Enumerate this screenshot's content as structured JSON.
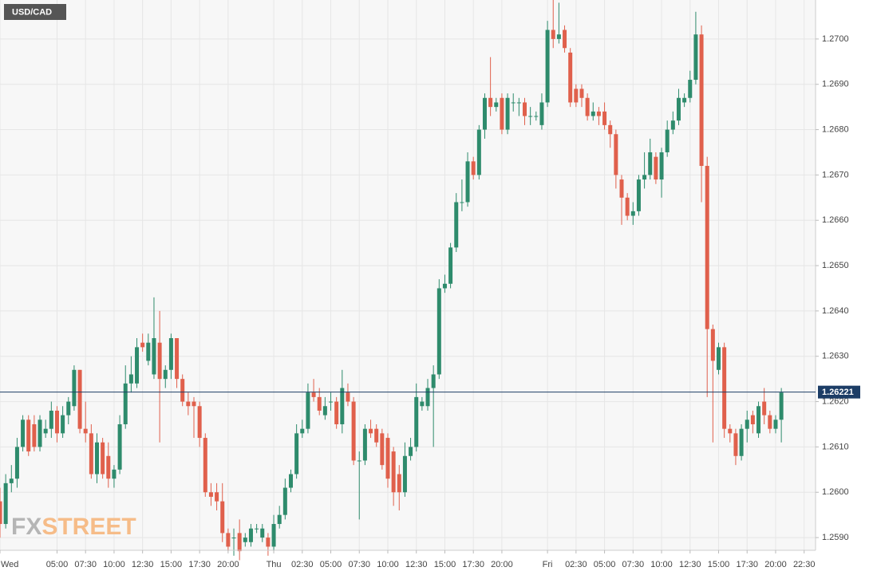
{
  "chart_data": {
    "type": "candlestick",
    "title": "USD/CAD",
    "x": [
      0,
      0.5,
      1,
      1.5,
      2,
      2.5,
      3,
      3.5,
      4,
      4.5,
      5,
      5.5,
      6,
      6.5,
      7,
      7.5,
      8,
      8.5,
      9,
      9.5,
      10,
      10.5,
      11,
      11.5,
      12,
      12.5,
      13,
      13.5,
      14,
      14.5,
      15,
      15.5,
      16,
      16.5,
      17,
      17.5,
      18,
      18.5,
      19,
      19.5,
      20,
      20.5,
      21,
      21.5,
      22,
      22.5,
      23,
      23.5,
      24,
      24.5,
      25,
      25.5,
      26,
      26.5,
      27,
      27.5,
      28,
      28.5,
      29,
      29.5,
      30,
      30.5,
      31,
      31.5,
      32,
      32.5,
      33,
      33.5,
      34,
      34.5,
      35,
      35.5,
      36,
      36.5,
      37,
      37.5,
      38,
      38.5,
      39,
      39.5,
      40,
      40.5,
      41,
      41.5,
      42,
      42.5,
      43,
      43.5,
      44,
      44.5,
      45,
      45.5,
      46,
      46.5,
      47,
      47.5,
      48,
      48.5,
      49,
      49.5,
      50,
      50.5,
      51,
      51.5,
      52,
      52.5,
      53,
      53.5,
      54,
      54.5,
      55,
      55.5,
      56,
      56.5,
      57,
      57.5,
      58,
      58.5,
      59,
      59.5,
      60,
      60.5,
      61,
      61.5,
      62,
      62.5,
      63,
      63.5,
      64,
      64.5,
      65,
      65.5,
      66,
      66.5,
      67,
      67.5,
      68,
      68.5
    ],
    "open": [
      1.2598,
      1.2593,
      1.2602,
      1.2603,
      1.261,
      1.2616,
      1.2615,
      1.261,
      1.2613,
      1.2614,
      1.2618,
      1.2613,
      1.2617,
      1.2619,
      1.2627,
      1.2614,
      1.2613,
      1.2604,
      1.2611,
      1.2608,
      1.2603,
      1.2605,
      1.2615,
      1.2624,
      1.2624,
      1.2633,
      1.2629,
      1.2626,
      1.2633,
      1.2625,
      1.2627,
      1.2634,
      1.2625,
      1.262,
      1.262,
      1.2619,
      1.2612,
      1.26,
      1.26,
      1.2598,
      1.2591,
      1.259,
      1.2591,
      1.2589,
      1.2589,
      1.2592,
      1.259,
      1.259,
      1.2588,
      1.2593,
      1.2595,
      1.2601,
      1.2604,
      1.2613,
      1.2614,
      1.2622,
      1.2621,
      1.2617,
      1.262,
      1.262,
      1.2615,
      1.2622,
      1.262,
      1.2607,
      1.2607,
      1.2614,
      1.2614,
      1.2613,
      1.2612,
      1.2609,
      1.2604,
      1.26,
      1.2608,
      1.261,
      1.2619,
      1.2619,
      1.2623,
      1.2626,
      1.2645,
      1.2646,
      1.2654,
      1.2664,
      1.2664,
      1.2673,
      1.267,
      1.268,
      1.2687,
      1.2685,
      1.2687,
      1.268,
      1.2686,
      1.2686,
      1.2686,
      1.2683,
      1.2683,
      1.2681,
      1.2686,
      1.2702,
      1.27,
      1.2702,
      1.2697,
      1.2689,
      1.2689,
      1.2687,
      1.2683,
      1.2684,
      1.2684,
      1.2681,
      1.2679,
      1.2669,
      1.2665,
      1.2661,
      1.2662,
      1.2669,
      1.267,
      1.2674,
      1.2669,
      1.2675,
      1.268,
      1.2682,
      1.2686,
      1.2687,
      1.2691,
      1.2701,
      1.2672,
      1.2636,
      1.2627,
      1.2632,
      1.2614,
      1.2613,
      1.2608,
      1.2614,
      1.2617,
      1.2613,
      1.262,
      1.2617,
      1.2614,
      1.2616
    ],
    "high": [
      1.2601,
      1.2604,
      1.2606,
      1.2612,
      1.2617,
      1.2617,
      1.2617,
      1.2617,
      1.2616,
      1.262,
      1.2619,
      1.2619,
      1.2621,
      1.2628,
      1.2627,
      1.262,
      1.2615,
      1.2613,
      1.2612,
      1.2611,
      1.2606,
      1.2617,
      1.2628,
      1.263,
      1.2634,
      1.2635,
      1.2635,
      1.2643,
      1.264,
      1.2628,
      1.2635,
      1.2634,
      1.2626,
      1.2622,
      1.2621,
      1.262,
      1.2613,
      1.2602,
      1.2602,
      1.2602,
      1.2592,
      1.2592,
      1.2594,
      1.2591,
      1.2593,
      1.2593,
      1.2593,
      1.2591,
      1.2595,
      1.2597,
      1.2603,
      1.2605,
      1.2615,
      1.2616,
      1.2624,
      1.2625,
      1.2623,
      1.2621,
      1.2622,
      1.2621,
      1.2627,
      1.2624,
      1.2621,
      1.2609,
      1.2615,
      1.2616,
      1.2615,
      1.2614,
      1.2613,
      1.261,
      1.2606,
      1.2611,
      1.2612,
      1.2624,
      1.2621,
      1.2625,
      1.2628,
      1.2647,
      1.2648,
      1.2655,
      1.2666,
      1.2669,
      1.2675,
      1.2674,
      1.2681,
      1.2688,
      1.2696,
      1.2687,
      1.2688,
      1.2688,
      1.2688,
      1.2687,
      1.2687,
      1.2685,
      1.2684,
      1.2688,
      1.2704,
      1.2709,
      1.2708,
      1.2703,
      1.2698,
      1.269,
      1.269,
      1.2688,
      1.2686,
      1.2685,
      1.2686,
      1.2682,
      1.268,
      1.267,
      1.2666,
      1.2664,
      1.267,
      1.2675,
      1.2678,
      1.2675,
      1.2676,
      1.2682,
      1.2684,
      1.2689,
      1.2688,
      1.2693,
      1.2706,
      1.2703,
      1.2674,
      1.2637,
      1.2633,
      1.2633,
      1.2615,
      1.2614,
      1.2615,
      1.2618,
      1.2618,
      1.262,
      1.2623,
      1.2618,
      1.2617,
      1.2623
    ],
    "low": [
      1.259,
      1.2592,
      1.26,
      1.2601,
      1.2609,
      1.2608,
      1.2609,
      1.2609,
      1.2612,
      1.2612,
      1.2611,
      1.2612,
      1.2615,
      1.2618,
      1.2613,
      1.2611,
      1.2603,
      1.2602,
      1.2603,
      1.2601,
      1.2601,
      1.2604,
      1.2614,
      1.2622,
      1.2623,
      1.2631,
      1.2628,
      1.2625,
      1.2611,
      1.2623,
      1.2625,
      1.2623,
      1.2619,
      1.2617,
      1.2612,
      1.261,
      1.2599,
      1.2597,
      1.2596,
      1.2589,
      1.2587,
      1.2586,
      1.2585,
      1.2588,
      1.2588,
      1.2591,
      1.2589,
      1.2586,
      1.2587,
      1.2592,
      1.2594,
      1.26,
      1.2603,
      1.2612,
      1.2613,
      1.262,
      1.2617,
      1.2616,
      1.2618,
      1.2614,
      1.2613,
      1.2619,
      1.2606,
      1.2594,
      1.2606,
      1.2612,
      1.261,
      1.2605,
      1.2601,
      1.2597,
      1.2596,
      1.2599,
      1.2607,
      1.2609,
      1.2618,
      1.2618,
      1.261,
      1.2625,
      1.2644,
      1.2645,
      1.2653,
      1.2662,
      1.2663,
      1.2669,
      1.2669,
      1.2678,
      1.2683,
      1.2684,
      1.2679,
      1.2679,
      1.2684,
      1.2683,
      1.2681,
      1.2681,
      1.2682,
      1.268,
      1.2685,
      1.2698,
      1.2699,
      1.2697,
      1.2685,
      1.2685,
      1.2685,
      1.2682,
      1.2682,
      1.2681,
      1.268,
      1.2676,
      1.2667,
      1.2659,
      1.266,
      1.2659,
      1.2661,
      1.2667,
      1.2669,
      1.2668,
      1.2665,
      1.2674,
      1.2679,
      1.2681,
      1.2685,
      1.2686,
      1.269,
      1.2664,
      1.2621,
      1.2611,
      1.2626,
      1.2612,
      1.2611,
      1.2606,
      1.2607,
      1.2611,
      1.2613,
      1.2612,
      1.2615,
      1.2613,
      1.2613,
      1.2611
    ],
    "close": [
      1.2593,
      1.2602,
      1.2603,
      1.261,
      1.2616,
      1.2609,
      1.261,
      1.2616,
      1.2614,
      1.2618,
      1.2613,
      1.2617,
      1.262,
      1.2627,
      1.2614,
      1.2613,
      1.2604,
      1.2611,
      1.2604,
      1.2603,
      1.2605,
      1.2615,
      1.2624,
      1.2626,
      1.2632,
      1.2632,
      1.2633,
      1.2634,
      1.2625,
      1.2627,
      1.2634,
      1.2625,
      1.262,
      1.2619,
      1.2619,
      1.2612,
      1.26,
      1.2599,
      1.2598,
      1.2591,
      1.2588,
      1.259,
      1.2587,
      1.259,
      1.2592,
      1.2592,
      1.2592,
      1.2588,
      1.2593,
      1.2595,
      1.2601,
      1.2604,
      1.2613,
      1.2614,
      1.2622,
      1.2621,
      1.2618,
      1.2619,
      1.262,
      1.2615,
      1.2623,
      1.262,
      1.2607,
      1.2607,
      1.2614,
      1.2613,
      1.2611,
      1.2606,
      1.2603,
      1.26,
      1.26,
      1.2608,
      1.261,
      1.2621,
      1.262,
      1.2623,
      1.2626,
      1.2645,
      1.2646,
      1.2654,
      1.2664,
      1.2664,
      1.2673,
      1.267,
      1.268,
      1.2687,
      1.2685,
      1.2686,
      1.268,
      1.2687,
      1.2686,
      1.2686,
      1.2683,
      1.2683,
      1.2683,
      1.2686,
      1.2702,
      1.27,
      1.2701,
      1.2698,
      1.2686,
      1.2686,
      1.2687,
      1.2683,
      1.2684,
      1.2683,
      1.2681,
      1.2679,
      1.267,
      1.2665,
      1.2661,
      1.2662,
      1.2669,
      1.267,
      1.2675,
      1.2669,
      1.2675,
      1.268,
      1.2682,
      1.2687,
      1.2687,
      1.2691,
      1.2701,
      1.2672,
      1.2636,
      1.2629,
      1.2632,
      1.2614,
      1.2613,
      1.2608,
      1.2614,
      1.2616,
      1.2615,
      1.2619,
      1.2617,
      1.2614,
      1.2616,
      1.2622
    ],
    "xlim": [
      0,
      71.5
    ],
    "xticks": [
      {
        "value": 0,
        "label": "Wed"
      },
      {
        "value": 5,
        "label": "05:00"
      },
      {
        "value": 7.5,
        "label": "07:30"
      },
      {
        "value": 10,
        "label": "10:00"
      },
      {
        "value": 12.5,
        "label": "12:30"
      },
      {
        "value": 15,
        "label": "15:00"
      },
      {
        "value": 17.5,
        "label": "17:30"
      },
      {
        "value": 20,
        "label": "20:00"
      },
      {
        "value": 24,
        "label": "Thu"
      },
      {
        "value": 26.5,
        "label": "02:30"
      },
      {
        "value": 29,
        "label": "05:00"
      },
      {
        "value": 31.5,
        "label": "07:30"
      },
      {
        "value": 34,
        "label": "10:00"
      },
      {
        "value": 36.5,
        "label": "12:30"
      },
      {
        "value": 39,
        "label": "15:00"
      },
      {
        "value": 41.5,
        "label": "17:30"
      },
      {
        "value": 44,
        "label": "20:00"
      },
      {
        "value": 48,
        "label": "Fri"
      },
      {
        "value": 50.5,
        "label": "02:30"
      },
      {
        "value": 53,
        "label": "05:00"
      },
      {
        "value": 55.5,
        "label": "07:30"
      },
      {
        "value": 58,
        "label": "10:00"
      },
      {
        "value": 60.5,
        "label": "12:30"
      },
      {
        "value": 63,
        "label": "15:00"
      },
      {
        "value": 65.5,
        "label": "17:30"
      },
      {
        "value": 68,
        "label": "20:00"
      },
      {
        "value": 70.5,
        "label": "22:30"
      }
    ],
    "ylim": [
      1.25872,
      1.27086
    ],
    "yticks": [
      {
        "value": 1.259,
        "label": "1.2590"
      },
      {
        "value": 1.26,
        "label": "1.2600"
      },
      {
        "value": 1.261,
        "label": "1.2610"
      },
      {
        "value": 1.262,
        "label": "1.2620"
      },
      {
        "value": 1.263,
        "label": "1.2630"
      },
      {
        "value": 1.264,
        "label": "1.2640"
      },
      {
        "value": 1.265,
        "label": "1.2650"
      },
      {
        "value": 1.266,
        "label": "1.2660"
      },
      {
        "value": 1.267,
        "label": "1.2670"
      },
      {
        "value": 1.268,
        "label": "1.2680"
      },
      {
        "value": 1.269,
        "label": "1.2690"
      },
      {
        "value": 1.27,
        "label": "1.2700"
      }
    ],
    "grid": true,
    "up_color": "#2e8b6c",
    "down_color": "#e0604c",
    "last_price": 1.26221,
    "last_price_color": "#1c3d66"
  },
  "watermark": {
    "fx": "FX",
    "street": "STREET"
  }
}
